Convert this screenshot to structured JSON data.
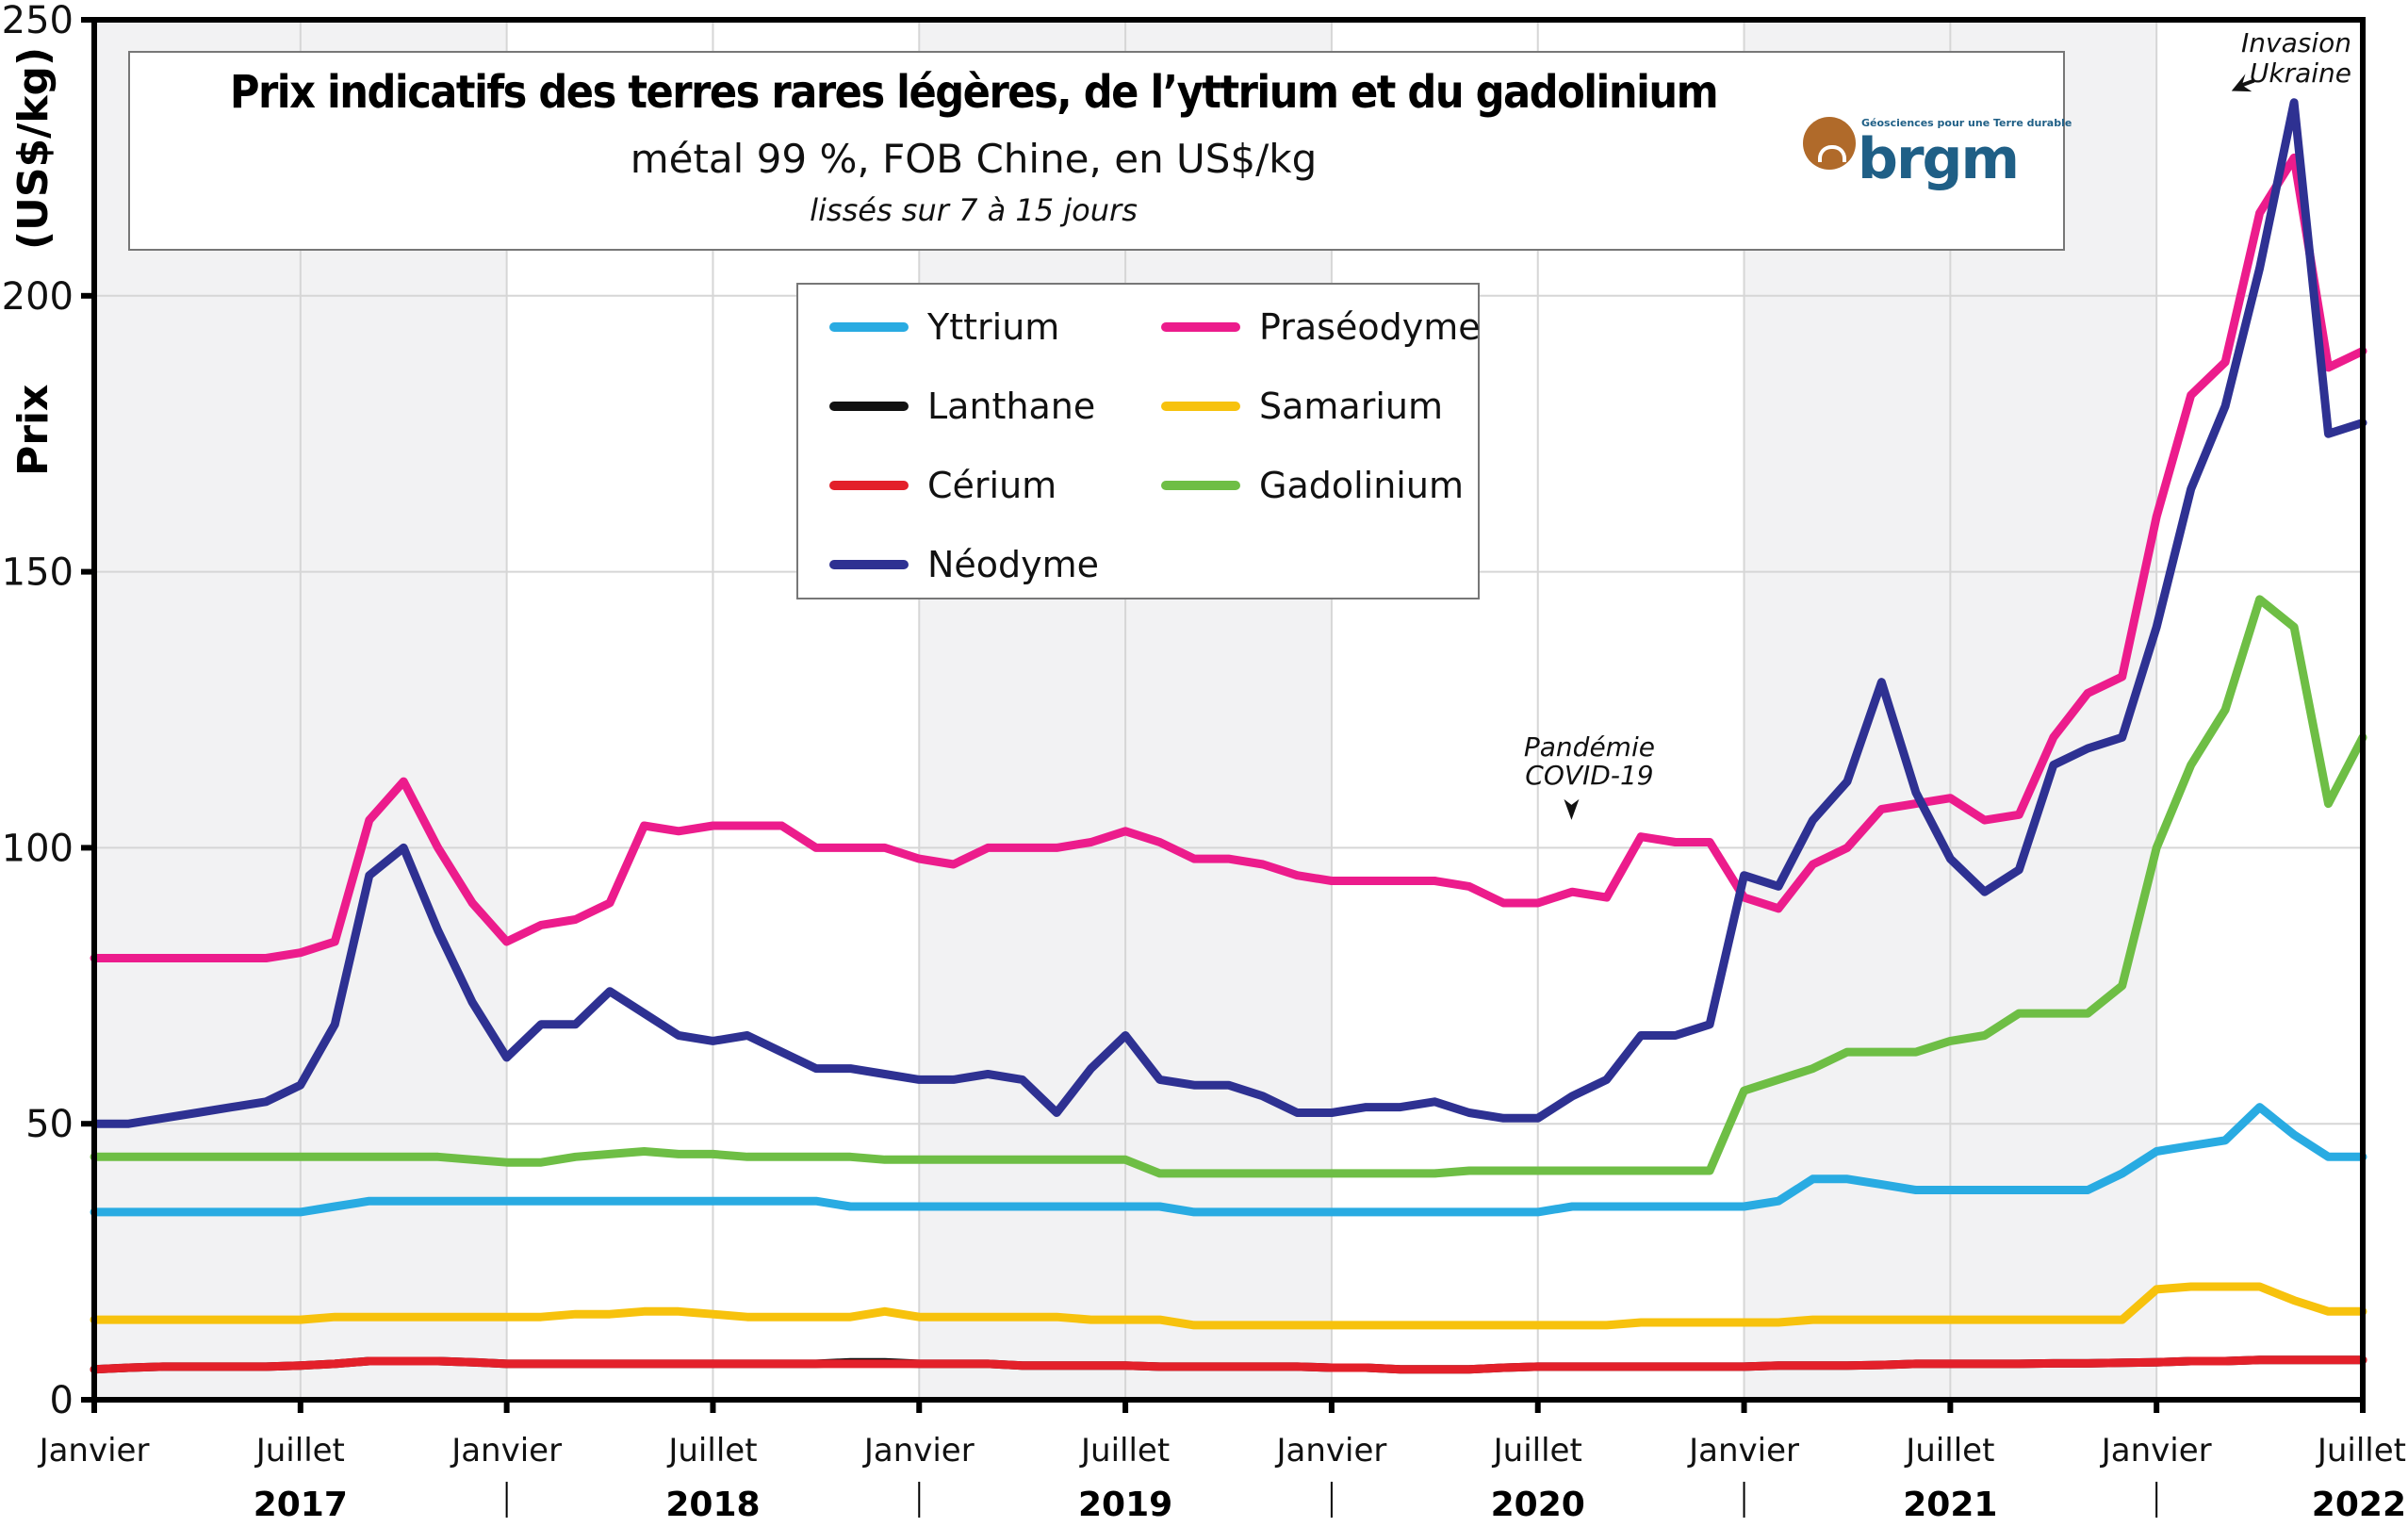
{
  "chart_data": {
    "type": "line",
    "title": "Prix indicatifs des terres rares légères, de l’yttrium et du gadolinium",
    "subtitle": "métal 99 %, FOB Chine, en US$/kg",
    "subtitle2": "lissés sur 7 à 15 jours",
    "ylabel": "Prix",
    "ylabel_unit": "(US$/kg)",
    "ylim": [
      0,
      250
    ],
    "yticks": [
      "0",
      "50",
      "100",
      "150",
      "200",
      "250"
    ],
    "ytick_values": [
      0,
      50,
      100,
      150,
      200,
      250
    ],
    "xlim_months": [
      0,
      66
    ],
    "xticks": [
      {
        "label": "Janvier",
        "month": 0
      },
      {
        "label": "Juillet",
        "month": 6
      },
      {
        "label": "Janvier",
        "month": 12
      },
      {
        "label": "Juillet",
        "month": 18
      },
      {
        "label": "Janvier",
        "month": 24
      },
      {
        "label": "Juillet",
        "month": 30
      },
      {
        "label": "Janvier",
        "month": 36
      },
      {
        "label": "Juillet",
        "month": 42
      },
      {
        "label": "Janvier",
        "month": 48
      },
      {
        "label": "Juillet",
        "month": 54
      },
      {
        "label": "Janvier",
        "month": 60
      },
      {
        "label": "Juillet",
        "month": 66
      }
    ],
    "years": [
      {
        "label": "2017",
        "month": 6
      },
      {
        "label": "2018",
        "month": 18
      },
      {
        "label": "2019",
        "month": 30
      },
      {
        "label": "2020",
        "month": 42
      },
      {
        "label": "2021",
        "month": 54
      },
      {
        "label": "2022",
        "month": 66
      }
    ],
    "x_unit": "months since January 2017",
    "grid": true,
    "legend_position": "top-center",
    "annotations": [
      {
        "text": [
          "Pandémie",
          "COVID-19"
        ],
        "month": 43.5,
        "value": 103
      },
      {
        "text": [
          "Invasion",
          "Ukraine"
        ],
        "month": 62,
        "value": 237
      }
    ],
    "logo": {
      "name": "brgm",
      "tagline": "Géosciences pour une Terre durable"
    },
    "x": [
      0,
      1,
      2,
      3,
      4,
      5,
      6,
      7,
      8,
      9,
      10,
      11,
      12,
      13,
      14,
      15,
      16,
      17,
      18,
      19,
      20,
      21,
      22,
      23,
      24,
      25,
      26,
      27,
      28,
      29,
      30,
      31,
      32,
      33,
      34,
      35,
      36,
      37,
      38,
      39,
      40,
      41,
      42,
      43,
      44,
      45,
      46,
      47,
      48,
      49,
      50,
      51,
      52,
      53,
      54,
      55,
      56,
      57,
      58,
      59,
      60,
      61,
      62,
      63,
      64,
      65,
      66
    ],
    "series": [
      {
        "name": "Yttrium",
        "color": "#29abe2",
        "values": [
          34,
          34,
          34,
          34,
          34,
          34,
          34,
          35,
          36,
          36,
          36,
          36,
          36,
          36,
          36,
          36,
          36,
          36,
          36,
          36,
          36,
          36,
          35,
          35,
          35,
          35,
          35,
          35,
          35,
          35,
          35,
          35,
          34,
          34,
          34,
          34,
          34,
          34,
          34,
          34,
          34,
          34,
          34,
          35,
          35,
          35,
          35,
          35,
          35,
          36,
          40,
          40,
          39,
          38,
          38,
          38,
          38,
          38,
          38,
          41,
          45,
          46,
          47,
          53,
          48,
          44,
          44
        ]
      },
      {
        "name": "Lanthane",
        "color": "#111111",
        "values": [
          5.5,
          5.8,
          6,
          6,
          6,
          6,
          6.2,
          6.5,
          7,
          7,
          7,
          6.8,
          6.5,
          6.5,
          6.5,
          6.5,
          6.5,
          6.5,
          6.5,
          6.5,
          6.5,
          6.5,
          6.8,
          6.8,
          6.5,
          6.5,
          6.5,
          6.2,
          6.2,
          6.2,
          6.2,
          6,
          6,
          6,
          6,
          6,
          5.8,
          5.8,
          5.5,
          5.5,
          5.5,
          5.8,
          6,
          6,
          6,
          6,
          6,
          6,
          6,
          6.2,
          6.2,
          6.2,
          6.3,
          6.5,
          6.5,
          6.5,
          6.5,
          6.6,
          6.6,
          6.7,
          6.8,
          7,
          7,
          7.2,
          7.2,
          7.2,
          7.2
        ]
      },
      {
        "name": "Cérium",
        "color": "#e3202a",
        "values": [
          5.5,
          5.8,
          6,
          6,
          6,
          6,
          6.2,
          6.5,
          7,
          7,
          7,
          6.8,
          6.5,
          6.5,
          6.5,
          6.5,
          6.5,
          6.5,
          6.5,
          6.5,
          6.5,
          6.5,
          6.5,
          6.5,
          6.5,
          6.5,
          6.5,
          6.2,
          6.2,
          6.2,
          6.2,
          6,
          6,
          6,
          6,
          6,
          5.8,
          5.8,
          5.5,
          5.5,
          5.5,
          5.8,
          6,
          6,
          6,
          6,
          6,
          6,
          6,
          6.2,
          6.2,
          6.2,
          6.3,
          6.5,
          6.5,
          6.5,
          6.5,
          6.6,
          6.6,
          6.7,
          6.8,
          7,
          7,
          7.2,
          7.2,
          7.2,
          7.2
        ]
      },
      {
        "name": "Néodyme",
        "color": "#2e3192",
        "values": [
          50,
          50,
          51,
          52,
          53,
          54,
          57,
          68,
          95,
          100,
          85,
          72,
          62,
          68,
          68,
          74,
          70,
          66,
          65,
          66,
          63,
          60,
          60,
          59,
          58,
          58,
          59,
          58,
          52,
          60,
          66,
          58,
          57,
          57,
          55,
          52,
          52,
          53,
          53,
          54,
          52,
          51,
          51,
          55,
          58,
          66,
          66,
          68,
          95,
          93,
          105,
          112,
          130,
          110,
          98,
          92,
          96,
          115,
          118,
          120,
          140,
          165,
          180,
          205,
          235,
          175,
          177
        ]
      },
      {
        "name": "Praséodyme",
        "color": "#ec1c8c",
        "values": [
          80,
          80,
          80,
          80,
          80,
          80,
          81,
          83,
          105,
          112,
          100,
          90,
          83,
          86,
          87,
          90,
          104,
          103,
          104,
          104,
          104,
          100,
          100,
          100,
          98,
          97,
          100,
          100,
          100,
          101,
          103,
          101,
          98,
          98,
          97,
          95,
          94,
          94,
          94,
          94,
          93,
          90,
          90,
          92,
          91,
          102,
          101,
          101,
          91,
          89,
          97,
          100,
          107,
          108,
          109,
          105,
          106,
          120,
          128,
          131,
          160,
          182,
          188,
          215,
          225,
          187,
          190
        ]
      },
      {
        "name": "Samarium",
        "color": "#f7c20d",
        "values": [
          14.5,
          14.5,
          14.5,
          14.5,
          14.5,
          14.5,
          14.5,
          15,
          15,
          15,
          15,
          15,
          15,
          15,
          15.5,
          15.5,
          16,
          16,
          15.5,
          15,
          15,
          15,
          15,
          16,
          15,
          15,
          15,
          15,
          15,
          14.5,
          14.5,
          14.5,
          13.5,
          13.5,
          13.5,
          13.5,
          13.5,
          13.5,
          13.5,
          13.5,
          13.5,
          13.5,
          13.5,
          13.5,
          13.5,
          14,
          14,
          14,
          14,
          14,
          14.5,
          14.5,
          14.5,
          14.5,
          14.5,
          14.5,
          14.5,
          14.5,
          14.5,
          14.5,
          20,
          20.5,
          20.5,
          20.5,
          18,
          16,
          16
        ]
      },
      {
        "name": "Gadolinium",
        "color": "#6ebe45",
        "values": [
          44,
          44,
          44,
          44,
          44,
          44,
          44,
          44,
          44,
          44,
          44,
          43.5,
          43,
          43,
          44,
          44.5,
          45,
          44.5,
          44.5,
          44,
          44,
          44,
          44,
          43.5,
          43.5,
          43.5,
          43.5,
          43.5,
          43.5,
          43.5,
          43.5,
          41,
          41,
          41,
          41,
          41,
          41,
          41,
          41,
          41,
          41.5,
          41.5,
          41.5,
          41.5,
          41.5,
          41.5,
          41.5,
          41.5,
          56,
          58,
          60,
          63,
          63,
          63,
          65,
          66,
          70,
          70,
          70,
          75,
          100,
          115,
          125,
          145,
          140,
          108,
          120
        ]
      }
    ]
  }
}
